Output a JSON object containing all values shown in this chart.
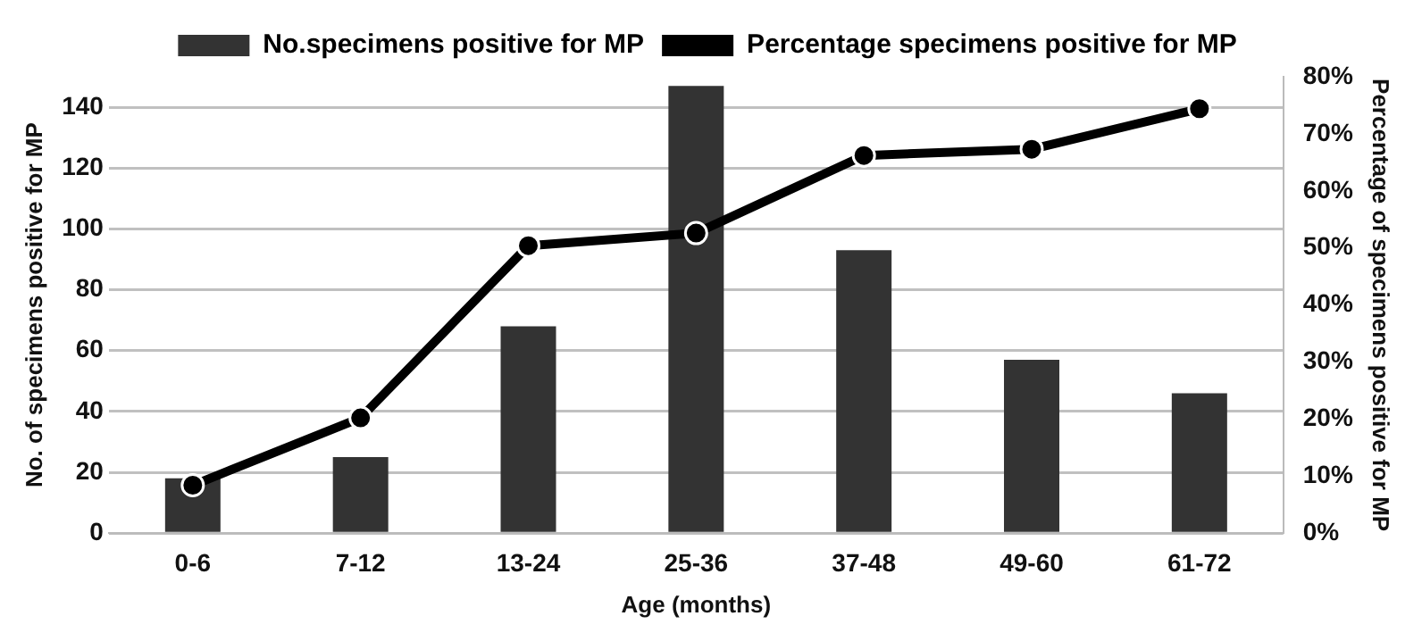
{
  "chart_data": {
    "type": "bar",
    "xlabel": "Age (months)",
    "ylabel": "No. of specimens positive for MP",
    "y2label": "Percentage of specimens positive for MP",
    "categories": [
      "0-6",
      "7-12",
      "13-24",
      "25-36",
      "37-48",
      "49-60",
      "61-72"
    ],
    "series": [
      {
        "name": "No.specimens positive for MP",
        "color": "#333333",
        "values": [
          18,
          25,
          68,
          147,
          93,
          57,
          46
        ]
      },
      {
        "name": "Percentage specimens positive for MP",
        "type": "line",
        "axis": "y2",
        "color": "#000000",
        "values": [
          8.4,
          20.2,
          50.4,
          52.6,
          66.2,
          67.3,
          74.4
        ]
      }
    ],
    "ylim": [
      0,
      150
    ],
    "yticks": [
      0,
      20,
      40,
      60,
      80,
      100,
      120,
      140
    ],
    "y2lim": [
      0,
      80
    ],
    "y2ticks": [
      {
        "value": 0,
        "label": "0%"
      },
      {
        "value": 10,
        "label": "10%"
      },
      {
        "value": 20,
        "label": "20%"
      },
      {
        "value": 30,
        "label": "30%"
      },
      {
        "value": 40,
        "label": "40%"
      },
      {
        "value": 50,
        "label": "50%"
      },
      {
        "value": 60,
        "label": "60%"
      },
      {
        "value": 70,
        "label": "70%"
      },
      {
        "value": 80,
        "label": "80%"
      }
    ],
    "grid": "y",
    "legend": "top",
    "marker": "circle",
    "line_style": "solid"
  }
}
